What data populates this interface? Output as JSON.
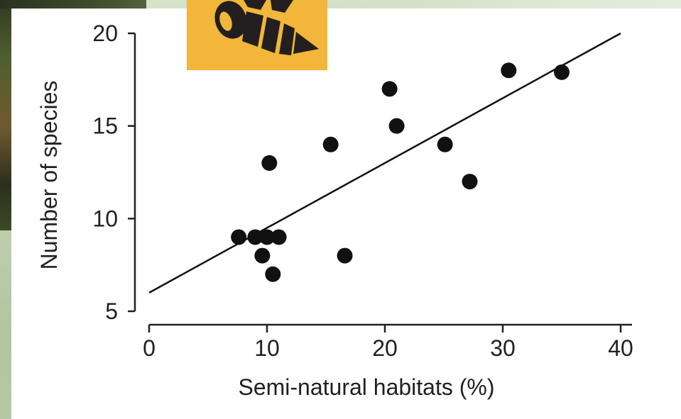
{
  "logo": {
    "icon": "bee-icon",
    "color": "#f1b63a"
  },
  "chart_data": {
    "type": "scatter",
    "title": "",
    "xlabel": "Semi-natural habitats (%)",
    "ylabel": "Number of species",
    "xlim": [
      0,
      40
    ],
    "ylim": [
      5,
      20
    ],
    "xticks": [
      0,
      10,
      20,
      30,
      40
    ],
    "yticks": [
      5,
      10,
      15,
      20
    ],
    "grid": false,
    "points": [
      {
        "x": 7.6,
        "y": 9
      },
      {
        "x": 9.0,
        "y": 9
      },
      {
        "x": 10.0,
        "y": 9
      },
      {
        "x": 11.0,
        "y": 9
      },
      {
        "x": 9.6,
        "y": 8
      },
      {
        "x": 10.5,
        "y": 7
      },
      {
        "x": 10.2,
        "y": 13
      },
      {
        "x": 15.4,
        "y": 14
      },
      {
        "x": 16.6,
        "y": 8
      },
      {
        "x": 20.4,
        "y": 17
      },
      {
        "x": 21.0,
        "y": 15
      },
      {
        "x": 25.1,
        "y": 14
      },
      {
        "x": 27.2,
        "y": 12
      },
      {
        "x": 30.5,
        "y": 18
      },
      {
        "x": 35.0,
        "y": 17.9
      }
    ],
    "trendline": {
      "x": [
        0,
        40
      ],
      "y": [
        6.0,
        20.0
      ]
    },
    "point_color": "#111111",
    "line_color": "#111111"
  }
}
